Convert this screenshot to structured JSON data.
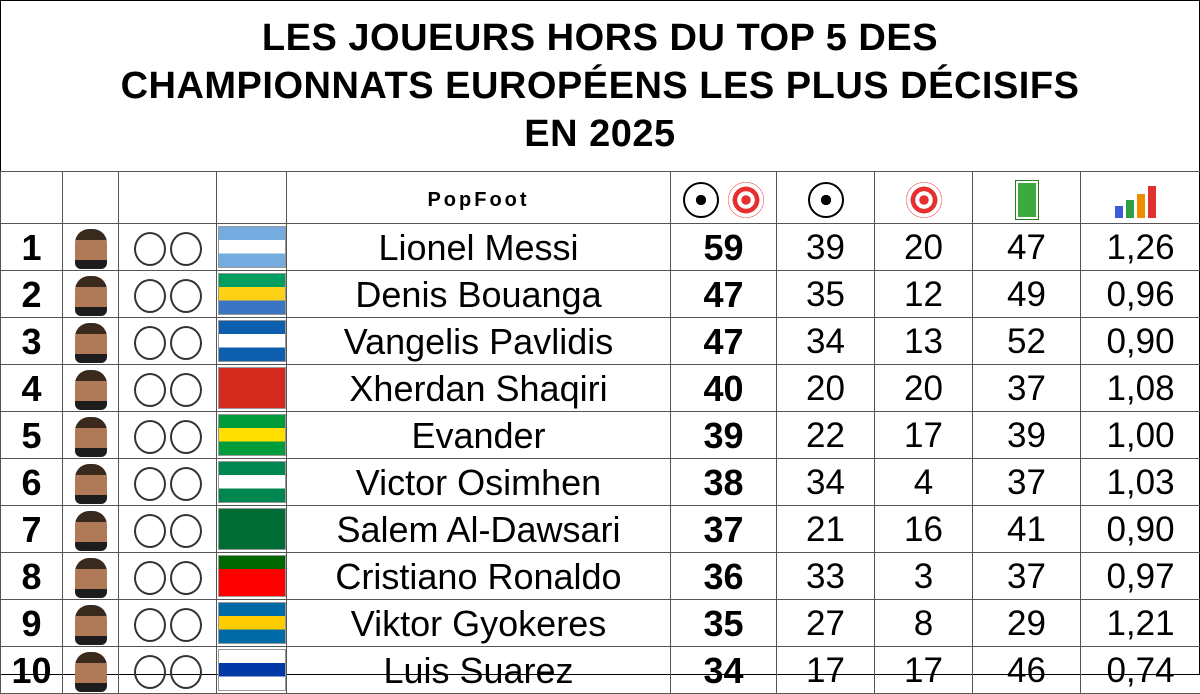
{
  "title": {
    "line1": "LES JOUEURS HORS DU TOP 5 DES",
    "line2": "CHAMPIONNATS EUROPÉENS LES PLUS DÉCISIFS",
    "line3": "EN 2025"
  },
  "brand": "PopFoot",
  "columns": {
    "total_icon": "ball-and-target-icon",
    "goals_icon": "ball-icon",
    "assists_icon": "target-icon",
    "matches_icon": "pitch-icon",
    "ratio_icon": "growth-chart-icon"
  },
  "rows": [
    {
      "rank": "1",
      "name": "Lionel Messi",
      "total": "59",
      "goals": "39",
      "assists": "20",
      "matches": "47",
      "ratio": "1,26",
      "flag": [
        "#74acdf",
        "#ffffff",
        "#74acdf"
      ]
    },
    {
      "rank": "2",
      "name": "Denis Bouanga",
      "total": "47",
      "goals": "35",
      "assists": "12",
      "matches": "49",
      "ratio": "0,96",
      "flag": [
        "#009e60",
        "#fcd116",
        "#3a75c4"
      ]
    },
    {
      "rank": "3",
      "name": "Vangelis Pavlidis",
      "total": "47",
      "goals": "34",
      "assists": "13",
      "matches": "52",
      "ratio": "0,90",
      "flag": [
        "#0d5eaf",
        "#ffffff",
        "#0d5eaf"
      ]
    },
    {
      "rank": "4",
      "name": "Xherdan Shaqiri",
      "total": "40",
      "goals": "20",
      "assists": "20",
      "matches": "37",
      "ratio": "1,08",
      "flag": [
        "#d52b1e",
        "#d52b1e",
        "#d52b1e"
      ]
    },
    {
      "rank": "5",
      "name": "Evander",
      "total": "39",
      "goals": "22",
      "assists": "17",
      "matches": "39",
      "ratio": "1,00",
      "flag": [
        "#009c3b",
        "#ffdf00",
        "#009c3b"
      ]
    },
    {
      "rank": "6",
      "name": "Victor Osimhen",
      "total": "38",
      "goals": "34",
      "assists": "4",
      "matches": "37",
      "ratio": "1,03",
      "flag": [
        "#008751",
        "#ffffff",
        "#008751"
      ]
    },
    {
      "rank": "7",
      "name": "Salem Al-Dawsari",
      "total": "37",
      "goals": "21",
      "assists": "16",
      "matches": "41",
      "ratio": "0,90",
      "flag": [
        "#006c35",
        "#006c35",
        "#006c35"
      ]
    },
    {
      "rank": "8",
      "name": "Cristiano Ronaldo",
      "total": "36",
      "goals": "33",
      "assists": "3",
      "matches": "37",
      "ratio": "0,97",
      "flag": [
        "#006600",
        "#ff0000",
        "#ff0000"
      ]
    },
    {
      "rank": "9",
      "name": "Viktor Gyokeres",
      "total": "35",
      "goals": "27",
      "assists": "8",
      "matches": "29",
      "ratio": "1,21",
      "flag": [
        "#006aa7",
        "#fecc00",
        "#006aa7"
      ]
    },
    {
      "rank": "10",
      "name": "Luis Suarez",
      "total": "34",
      "goals": "17",
      "assists": "17",
      "matches": "46",
      "ratio": "0,74",
      "flag": [
        "#ffffff",
        "#0038a8",
        "#ffffff"
      ]
    }
  ]
}
